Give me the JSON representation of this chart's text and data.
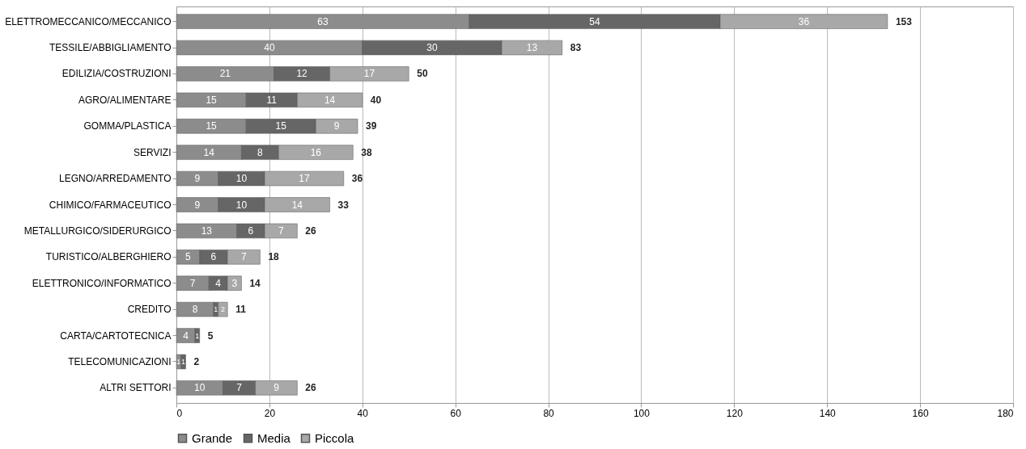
{
  "chart_data": {
    "type": "bar",
    "orientation": "horizontal",
    "stacked": true,
    "categories": [
      "ELETTROMECCANICO/MECCANICO",
      "TESSILE/ABBIGLIAMENTO",
      "EDILIZIA/COSTRUZIONI",
      "AGRO/ALIMENTARE",
      "GOMMA/PLASTICA",
      "SERVIZI",
      "LEGNO/ARREDAMENTO",
      "CHIMICO/FARMACEUTICO",
      "METALLURGICO/SIDERURGICO",
      "TURISTICO/ALBERGHIERO",
      "ELETTRONICO/INFORMATICO",
      "CREDITO",
      "CARTA/CARTOTECNICA",
      "TELECOMUNICAZIONI",
      "ALTRI SETTORI"
    ],
    "series": [
      {
        "name": "Grande",
        "color": "#8c8c8c",
        "values": [
          63,
          40,
          21,
          15,
          15,
          14,
          9,
          9,
          13,
          5,
          7,
          8,
          4,
          1,
          10
        ]
      },
      {
        "name": "Media",
        "color": "#666666",
        "values": [
          54,
          30,
          12,
          11,
          15,
          8,
          10,
          10,
          6,
          6,
          4,
          1,
          1,
          1,
          7
        ]
      },
      {
        "name": "Piccola",
        "color": "#a8a8a8",
        "values": [
          36,
          13,
          17,
          14,
          9,
          16,
          17,
          14,
          7,
          7,
          3,
          2,
          null,
          null,
          9
        ]
      }
    ],
    "totals": [
      "153",
      "83",
      "50",
      "40",
      "39",
      "38",
      "36",
      "33",
      "26",
      "18",
      "14",
      "11",
      "5",
      "2",
      "26"
    ],
    "data_labels": true,
    "xlim": [
      0,
      180
    ],
    "xticks": [
      0,
      20,
      40,
      60,
      80,
      100,
      120,
      140,
      160,
      180
    ],
    "grid": "x",
    "legend": "bottom"
  }
}
